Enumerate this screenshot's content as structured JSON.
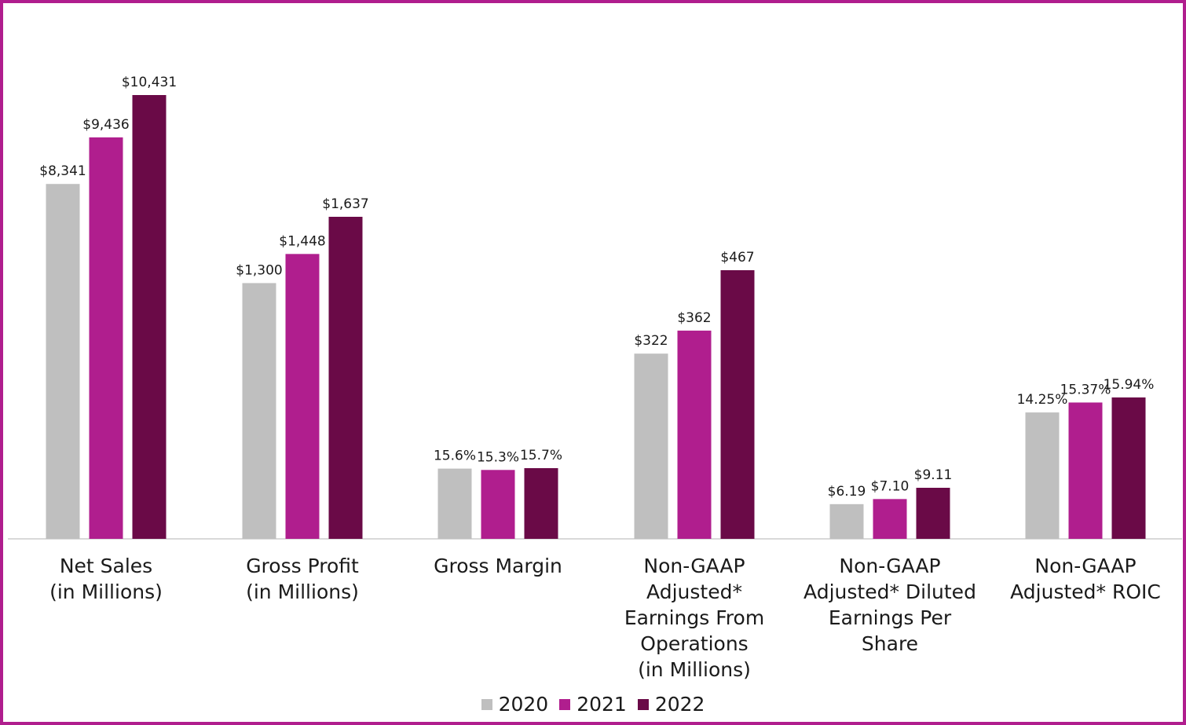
{
  "chart_data": {
    "type": "bar",
    "title": "",
    "xlabel": "",
    "ylabel": "",
    "legend_position": "bottom",
    "categories": [
      "Net Sales (in Millions)",
      "Gross Profit (in Millions)",
      "Gross Margin",
      "Non-GAAP Adjusted* Earnings From Operations (in Millions)",
      "Non-GAAP Adjusted* Diluted Earnings Per Share",
      "Non-GAAP Adjusted* ROIC"
    ],
    "category_lines": [
      [
        "Net Sales",
        "(in Millions)"
      ],
      [
        "Gross Profit",
        "(in Millions)"
      ],
      [
        "Gross Margin"
      ],
      [
        "Non-GAAP",
        "Adjusted*",
        "Earnings From",
        "Operations",
        "(in Millions)"
      ],
      [
        "Non-GAAP",
        "Adjusted* Diluted",
        "Earnings Per",
        "Share"
      ],
      [
        "Non-GAAP",
        "Adjusted* ROIC"
      ]
    ],
    "series": [
      {
        "name": "2020",
        "color": "#bfbfbf",
        "values": [
          8341,
          1300,
          15.6,
          322,
          6.19,
          14.25
        ],
        "labels": [
          "$8,341",
          "$1,300",
          "15.6%",
          "$322",
          "$6.19",
          "14.25%"
        ]
      },
      {
        "name": "2021",
        "color": "#b01e8e",
        "values": [
          9436,
          1448,
          15.3,
          362,
          7.1,
          15.37
        ],
        "labels": [
          "$9,436",
          "$1,448",
          "15.3%",
          "$362",
          "$7.10",
          "15.37%"
        ]
      },
      {
        "name": "2022",
        "color": "#6a0a47",
        "values": [
          10431,
          1637,
          15.7,
          467,
          9.11,
          15.94
        ],
        "labels": [
          "$10,431",
          "$1,637",
          "15.7%",
          "$467",
          "$9.11",
          "15.94%"
        ]
      }
    ],
    "grid": false
  }
}
